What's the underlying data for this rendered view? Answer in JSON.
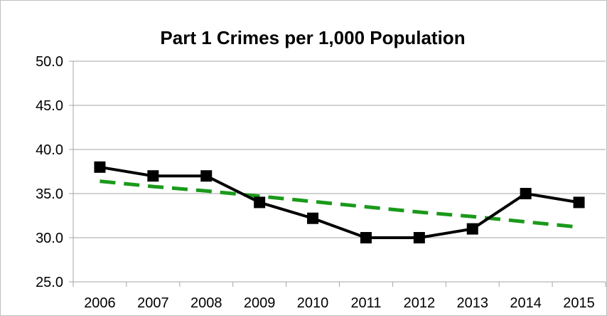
{
  "chart_data": {
    "type": "line",
    "title": "Part 1 Crimes per 1,000 Population",
    "xlabel": "",
    "ylabel": "",
    "categories": [
      "2006",
      "2007",
      "2008",
      "2009",
      "2010",
      "2011",
      "2012",
      "2013",
      "2014",
      "2015"
    ],
    "series": [
      {
        "values": [
          38.0,
          37.0,
          37.0,
          34.0,
          32.2,
          30.0,
          30.0,
          31.0,
          35.0,
          34.0
        ],
        "color": "#000000",
        "marker": "square",
        "line_style": "solid"
      },
      {
        "trendline": "linear",
        "values": [
          36.4,
          35.8,
          35.3,
          34.7,
          34.1,
          33.5,
          32.9,
          32.4,
          31.8,
          31.2
        ],
        "color": "#1a9a1a",
        "line_style": "dashed"
      }
    ],
    "ylim": [
      25.0,
      50.0
    ],
    "yticks": [
      "25.0",
      "30.0",
      "35.0",
      "40.0",
      "45.0",
      "50.0"
    ],
    "grid": "horizontal",
    "legend": "none"
  }
}
